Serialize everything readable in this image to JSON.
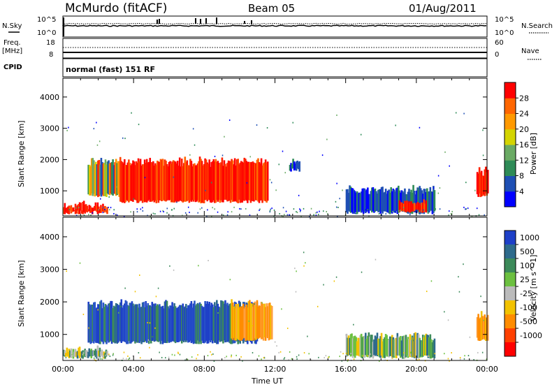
{
  "header": {
    "station": "McMurdo (fitACF)",
    "beam": "Beam 05",
    "date": "01/Aug/2011"
  },
  "top_panel": {
    "left_label": "N.Sky",
    "right_label": "N.Search",
    "left_ticks": [
      "10^5",
      "10^0"
    ],
    "right_ticks": [
      "10^5",
      "10^0"
    ]
  },
  "freq_panel": {
    "left_label_1": "Freq.",
    "left_label_2": "[MHz]",
    "right_label": "Nave",
    "left_ticks": [
      "18",
      "8"
    ],
    "right_ticks": [
      "60",
      "0"
    ]
  },
  "cpid": {
    "label": "CPID",
    "value": "normal (fast) 151 RF"
  },
  "chart_data": [
    {
      "type": "heatmap",
      "ylabel": "Slant Range [km]",
      "xlabel": "",
      "y_ticks": [
        "1000",
        "2000",
        "3000",
        "4000"
      ],
      "ylim": [
        200,
        4600
      ],
      "xlim_hours": [
        0,
        24
      ],
      "colorbar_label": "Power [dB]",
      "colorbar_ticks": [
        "4",
        "8",
        "12",
        "16",
        "20",
        "24",
        "28"
      ],
      "colorbar_colors": [
        "#0000ff",
        "#1e4fb4",
        "#2e8b57",
        "#6aaa64",
        "#d4d400",
        "#ff9900",
        "#ff6600",
        "#ff0000"
      ],
      "regions": [
        {
          "t0": 1.4,
          "t1": 3.2,
          "r0": 800,
          "r1": 2000,
          "level": "mid"
        },
        {
          "t0": 3.2,
          "t1": 11.6,
          "r0": 600,
          "r1": 2000,
          "level": "high"
        },
        {
          "t0": 0.0,
          "t1": 2.5,
          "r0": 250,
          "r1": 600,
          "level": "high"
        },
        {
          "t0": 12.8,
          "t1": 13.4,
          "r0": 1600,
          "r1": 2000,
          "level": "low"
        },
        {
          "t0": 16.0,
          "t1": 21.0,
          "r0": 250,
          "r1": 1100,
          "level": "low"
        },
        {
          "t0": 19.0,
          "t1": 20.5,
          "r0": 300,
          "r1": 700,
          "level": "high"
        },
        {
          "t0": 23.4,
          "t1": 24.0,
          "r0": 800,
          "r1": 1700,
          "level": "high"
        }
      ]
    },
    {
      "type": "heatmap",
      "ylabel": "Slant Range [km]",
      "xlabel": "Time UT",
      "x_ticks": [
        "00:00",
        "04:00",
        "08:00",
        "12:00",
        "16:00",
        "20:00",
        "00:00"
      ],
      "y_ticks": [
        "1000",
        "2000",
        "3000",
        "4000"
      ],
      "ylim": [
        200,
        4600
      ],
      "xlim_hours": [
        0,
        24
      ],
      "colorbar_label": "Velocity [m s^-1]",
      "colorbar_ticks": [
        "1000",
        "500",
        "100",
        "25",
        "-25",
        "-100",
        "-500",
        "-1000"
      ],
      "colorbar_colors": [
        "#1e40c8",
        "#2e6b8c",
        "#3c8a5a",
        "#6cc040",
        "#bbbbbb",
        "#f2c200",
        "#ff8c00",
        "#ff4000",
        "#ff0000"
      ],
      "regions": [
        {
          "t0": 1.4,
          "t1": 11.0,
          "r0": 700,
          "r1": 2000,
          "level": "blue"
        },
        {
          "t0": 9.5,
          "t1": 11.8,
          "r0": 800,
          "r1": 2000,
          "level": "orange"
        },
        {
          "t0": 0.0,
          "t1": 2.5,
          "r0": 250,
          "r1": 600,
          "level": "green"
        },
        {
          "t0": 16.0,
          "t1": 21.0,
          "r0": 250,
          "r1": 1000,
          "level": "green"
        },
        {
          "t0": 23.4,
          "t1": 24.0,
          "r0": 800,
          "r1": 1700,
          "level": "orange"
        }
      ]
    }
  ]
}
